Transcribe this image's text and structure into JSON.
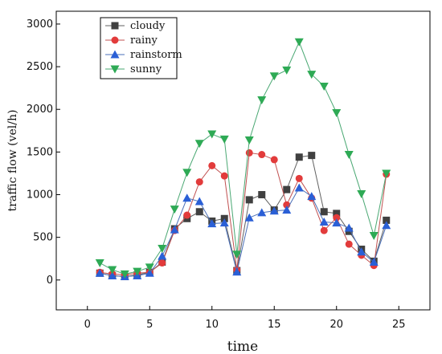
{
  "chart_data": {
    "type": "line",
    "title": "",
    "xlabel": "time",
    "ylabel": "traffic flow (vel/h)",
    "xlim": [
      -2.5,
      27.5
    ],
    "ylim": [
      -350,
      3150
    ],
    "xticks": [
      0,
      5,
      10,
      15,
      20,
      25
    ],
    "yticks": [
      0,
      500,
      1000,
      1500,
      2000,
      2500,
      3000
    ],
    "x": [
      1,
      2,
      3,
      4,
      5,
      6,
      7,
      8,
      9,
      10,
      11,
      12,
      13,
      14,
      15,
      16,
      17,
      18,
      19,
      20,
      21,
      22,
      23,
      24
    ],
    "legend_position": "top-left",
    "series": [
      {
        "name": "cloudy",
        "marker": "square",
        "color": "#404040",
        "line_color": "#606060",
        "values": [
          80,
          50,
          40,
          60,
          90,
          210,
          600,
          720,
          800,
          690,
          720,
          110,
          940,
          1000,
          820,
          1060,
          1440,
          1460,
          800,
          780,
          570,
          360,
          220,
          700
        ]
      },
      {
        "name": "rainy",
        "marker": "circle",
        "color": "#e23b3b",
        "line_color": "#c05050",
        "values": [
          90,
          70,
          60,
          80,
          90,
          200,
          580,
          760,
          1150,
          1340,
          1220,
          120,
          1490,
          1470,
          1410,
          880,
          1190,
          960,
          580,
          730,
          420,
          290,
          170,
          1240
        ]
      },
      {
        "name": "rainstorm",
        "marker": "triangle-up",
        "color": "#2a5fd6",
        "line_color": "#4a6fb8",
        "values": [
          80,
          50,
          40,
          50,
          80,
          280,
          590,
          960,
          920,
          660,
          670,
          95,
          730,
          790,
          810,
          820,
          1080,
          980,
          680,
          670,
          610,
          330,
          210,
          640
        ]
      },
      {
        "name": "sunny",
        "marker": "triangle-down",
        "color": "#2eaa55",
        "line_color": "#4aa873",
        "values": [
          200,
          120,
          70,
          100,
          150,
          370,
          830,
          1260,
          1600,
          1710,
          1650,
          300,
          1640,
          2110,
          2390,
          2460,
          2790,
          2410,
          2270,
          1960,
          1470,
          1010,
          520,
          1250
        ]
      }
    ]
  }
}
